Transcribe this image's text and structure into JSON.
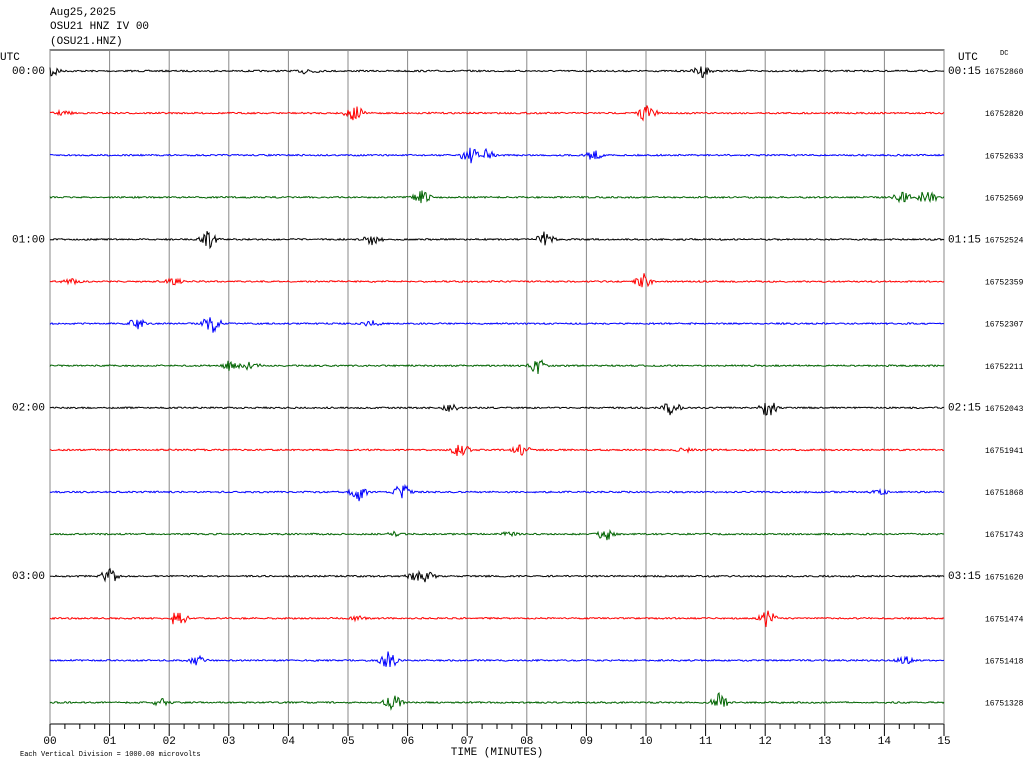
{
  "header": {
    "date": "Aug25,2025",
    "station": "OSU21 HNZ IV 00",
    "channel": "(OSU21.HNZ)"
  },
  "left_unit": "UTC",
  "right_unit": "UTC",
  "dc_label": "DC",
  "hour_labels": [
    {
      "left": "00:00",
      "right": "00:15"
    },
    {
      "left": "01:00",
      "right": "01:15"
    },
    {
      "left": "02:00",
      "right": "02:15"
    },
    {
      "left": "03:00",
      "right": "03:15"
    }
  ],
  "dc_values": [
    "16752860",
    "16752820",
    "16752633",
    "16752569",
    "16752524",
    "16752359",
    "16752307",
    "16752211",
    "16752043",
    "16751941",
    "16751868",
    "16751743",
    "16751620",
    "16751474",
    "16751418",
    "16751328"
  ],
  "trace_colors": [
    "#000000",
    "#ff0000",
    "#0000ff",
    "#006400"
  ],
  "x_axis": {
    "label": "TIME (MINUTES)",
    "ticks": [
      {
        "value": 0,
        "label": "00"
      },
      {
        "value": 1,
        "label": "01"
      },
      {
        "value": 2,
        "label": "02"
      },
      {
        "value": 3,
        "label": "03"
      },
      {
        "value": 4,
        "label": "04"
      },
      {
        "value": 5,
        "label": "05"
      },
      {
        "value": 6,
        "label": "06"
      },
      {
        "value": 7,
        "label": "07"
      },
      {
        "value": 8,
        "label": "08"
      },
      {
        "value": 9,
        "label": "09"
      },
      {
        "value": 10,
        "label": "10"
      },
      {
        "value": 11,
        "label": "11"
      },
      {
        "value": 12,
        "label": "12"
      },
      {
        "value": 13,
        "label": "13"
      },
      {
        "value": 14,
        "label": "14"
      },
      {
        "value": 15,
        "label": "15"
      }
    ]
  },
  "footer": "Each Vertical Division = 1000.00 microvolts"
}
